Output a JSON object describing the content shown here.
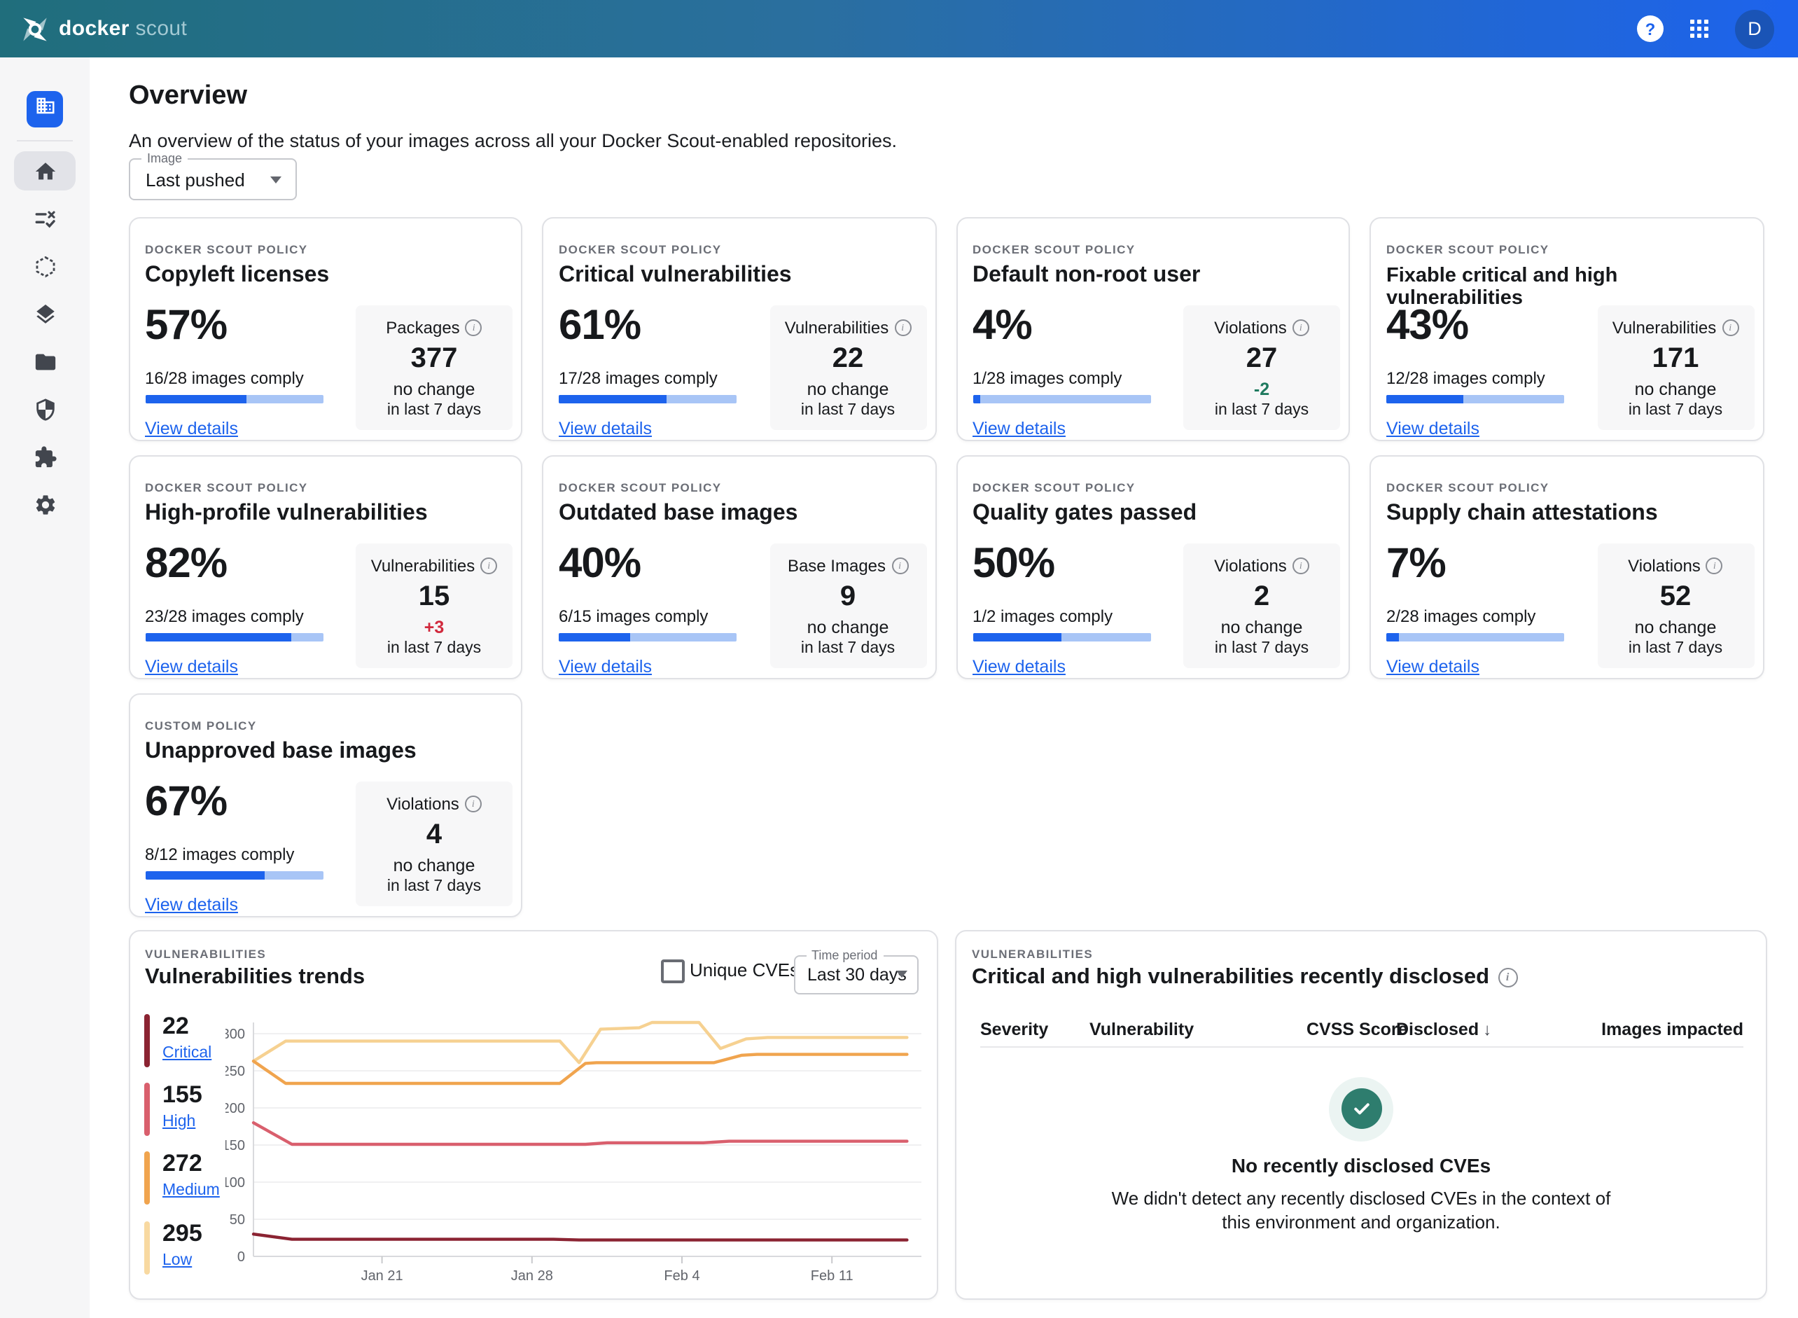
{
  "header": {
    "logo_part1": "docker",
    "logo_part2": "scout",
    "avatar_initial": "D"
  },
  "sidebar": {
    "items": [
      {
        "name": "organization",
        "icon": "building-icon",
        "active": true
      },
      {
        "name": "home",
        "icon": "home-icon",
        "selected": true
      },
      {
        "name": "policies",
        "icon": "checklist-icon"
      },
      {
        "name": "images",
        "icon": "hexagon-icon"
      },
      {
        "name": "layers",
        "icon": "layers-icon"
      },
      {
        "name": "repositories",
        "icon": "folder-icon"
      },
      {
        "name": "vulnerabilities",
        "icon": "shield-icon"
      },
      {
        "name": "integrations",
        "icon": "puzzle-icon"
      },
      {
        "name": "settings",
        "icon": "gear-icon"
      }
    ]
  },
  "page": {
    "title": "Overview",
    "subtitle": "An overview of the status of your images across all your Docker Scout-enabled repositories.",
    "image_filter": {
      "label": "Image",
      "value": "Last pushed"
    }
  },
  "cards": [
    {
      "overline": "DOCKER SCOUT POLICY",
      "title": "Copyleft licenses",
      "percent": "57%",
      "comply": "16/28 images comply",
      "progress_pct": 57,
      "link": "View details",
      "stat": {
        "label": "Packages",
        "value": "377",
        "line2": "no change",
        "line3": "in last 7 days"
      }
    },
    {
      "overline": "DOCKER SCOUT POLICY",
      "title": "Critical vulnerabilities",
      "percent": "61%",
      "comply": "17/28 images comply",
      "progress_pct": 61,
      "link": "View details",
      "stat": {
        "label": "Vulnerabilities",
        "value": "22",
        "line2": "no change",
        "line3": "in last 7 days"
      }
    },
    {
      "overline": "DOCKER SCOUT POLICY",
      "title": "Default non-root user",
      "percent": "4%",
      "comply": "1/28 images comply",
      "progress_pct": 4,
      "link": "View details",
      "stat": {
        "label": "Violations",
        "value": "27",
        "line2": "-2",
        "line2_color": "#1f7a5f",
        "line3": "in last 7 days"
      }
    },
    {
      "overline": "DOCKER SCOUT POLICY",
      "title": "Fixable critical and high vulnerabilities",
      "percent": "43%",
      "comply": "12/28 images comply",
      "progress_pct": 43,
      "link": "View details",
      "stat": {
        "label": "Vulnerabilities",
        "value": "171",
        "line2": "no change",
        "line3": "in last 7 days"
      }
    },
    {
      "overline": "DOCKER SCOUT POLICY",
      "title": "High-profile vulnerabilities",
      "percent": "82%",
      "comply": "23/28 images comply",
      "progress_pct": 82,
      "link": "View details",
      "stat": {
        "label": "Vulnerabilities",
        "value": "15",
        "line2": "+3",
        "line2_color": "#d1293d",
        "line3": "in last 7 days"
      }
    },
    {
      "overline": "DOCKER SCOUT POLICY",
      "title": "Outdated base images",
      "percent": "40%",
      "comply": "6/15 images comply",
      "progress_pct": 40,
      "link": "View details",
      "stat": {
        "label": "Base Images",
        "value": "9",
        "line2": "no change",
        "line3": "in last 7 days"
      }
    },
    {
      "overline": "DOCKER SCOUT POLICY",
      "title": "Quality gates passed",
      "percent": "50%",
      "comply": "1/2 images comply",
      "progress_pct": 50,
      "link": "View details",
      "stat": {
        "label": "Violations",
        "value": "2",
        "line2": "no change",
        "line3": "in last 7 days"
      }
    },
    {
      "overline": "DOCKER SCOUT POLICY",
      "title": "Supply chain attestations",
      "percent": "7%",
      "comply": "2/28 images comply",
      "progress_pct": 7,
      "link": "View details",
      "stat": {
        "label": "Violations",
        "value": "52",
        "line2": "no change",
        "line3": "in last 7 days"
      }
    },
    {
      "overline": "CUSTOM POLICY",
      "title": "Unapproved base images",
      "percent": "67%",
      "comply": "8/12 images comply",
      "progress_pct": 67,
      "link": "View details",
      "stat": {
        "label": "Violations",
        "value": "4",
        "line2": "no change",
        "line3": "in last 7 days"
      }
    }
  ],
  "trends": {
    "overline": "VULNERABILITIES",
    "title": "Vulnerabilities trends",
    "unique_cves_label": "Unique CVEs",
    "time_period": {
      "label": "Time period",
      "value": "Last 30 days"
    },
    "legend": [
      {
        "value": "22",
        "label": "Critical",
        "color": "#8b2332"
      },
      {
        "value": "155",
        "label": "High",
        "color": "#d95f6d"
      },
      {
        "value": "272",
        "label": "Medium",
        "color": "#f0a44e"
      },
      {
        "value": "295",
        "label": "Low",
        "color": "#f8d9a1"
      }
    ]
  },
  "chart_data": {
    "type": "line",
    "title": "Vulnerabilities trends",
    "xlabel": "",
    "ylabel": "",
    "x_range_days": [
      "Jan 15",
      "Feb 14"
    ],
    "xticks": [
      {
        "label": "Jan 21",
        "d": 6
      },
      {
        "label": "Jan 28",
        "d": 13
      },
      {
        "label": "Feb 4",
        "d": 20
      },
      {
        "label": "Feb 11",
        "d": 27
      }
    ],
    "yticks": [
      0,
      50,
      100,
      150,
      200,
      250,
      300
    ],
    "ylim": [
      0,
      322
    ],
    "grid": "horizontal",
    "legend_position": "left",
    "series": [
      {
        "name": "Low",
        "current": 295,
        "color": "#f6d191",
        "points": [
          [
            0,
            263
          ],
          [
            1.5,
            290
          ],
          [
            14.3,
            290
          ],
          [
            15.2,
            261
          ],
          [
            16.2,
            306
          ],
          [
            18,
            308
          ],
          [
            18.6,
            315
          ],
          [
            20.8,
            315
          ],
          [
            21.8,
            280
          ],
          [
            23,
            293
          ],
          [
            24,
            295
          ],
          [
            30.5,
            295
          ]
        ]
      },
      {
        "name": "Medium",
        "current": 272,
        "color": "#f0a44e",
        "points": [
          [
            0,
            263
          ],
          [
            1.5,
            233
          ],
          [
            14.3,
            233
          ],
          [
            15.5,
            260
          ],
          [
            16,
            261
          ],
          [
            21.5,
            261
          ],
          [
            22.8,
            271
          ],
          [
            23.5,
            272
          ],
          [
            30.5,
            272
          ]
        ]
      },
      {
        "name": "High",
        "current": 155,
        "color": "#d95f6d",
        "points": [
          [
            0,
            180
          ],
          [
            1.8,
            151
          ],
          [
            15.5,
            151
          ],
          [
            16.5,
            153
          ],
          [
            21,
            153
          ],
          [
            22.2,
            155
          ],
          [
            30.5,
            155
          ]
        ]
      },
      {
        "name": "Critical",
        "current": 22,
        "color": "#8b2332",
        "points": [
          [
            0,
            30
          ],
          [
            1.8,
            23
          ],
          [
            14,
            23
          ],
          [
            15.2,
            22
          ],
          [
            30.5,
            22
          ]
        ]
      }
    ]
  },
  "disclosed": {
    "overline": "VULNERABILITIES",
    "title": "Critical and high vulnerabilities recently disclosed",
    "columns": [
      "Severity",
      "Vulnerability",
      "CVSS Score",
      "Disclosed",
      "Images impacted"
    ],
    "sorted_column": "Disclosed",
    "empty": {
      "title": "No recently disclosed CVEs",
      "body": "We didn't detect any recently disclosed CVEs in the context of this environment and organization."
    }
  }
}
